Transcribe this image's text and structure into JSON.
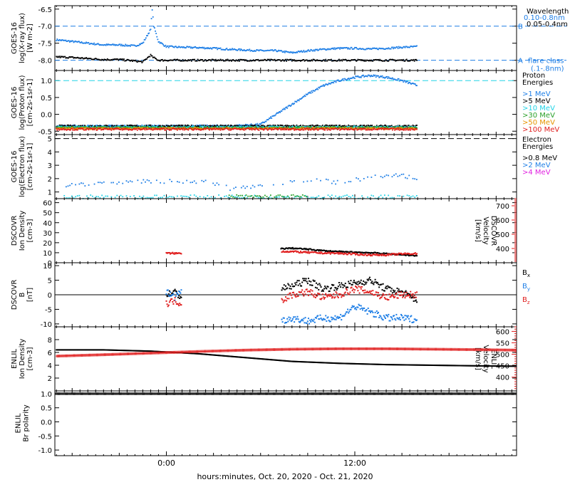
{
  "colors": {
    "black": "#000000",
    "blue": "#1f7fe6",
    "cyan": "#22d3e6",
    "green": "#2aa02a",
    "orange": "#e69500",
    "red": "#e01e1e",
    "magenta": "#e020e0"
  },
  "x_axis": {
    "title": "hours:minutes, Oct. 20, 2020 - Oct. 21, 2020",
    "tick_labels": [
      "0:00",
      "12:00"
    ],
    "range_hours": [
      -7.1,
      22.3
    ],
    "major_ticks_hours": [
      0,
      12
    ],
    "minor_tick_step_hours": 0.5
  },
  "chart_data": [
    {
      "id": "xray",
      "type": "scatter",
      "ylabel": [
        "GOES-16",
        "log(X-ray flux)",
        "[W m-2]"
      ],
      "ylim": [
        -8.3,
        -6.4
      ],
      "yticks": [
        -6.5,
        -7.0,
        -7.5,
        -8.0
      ],
      "ytick_labels": [
        "-6.5",
        "-7.0",
        "-7.5",
        "-8.0"
      ],
      "legend_title": "Wavelength",
      "series": [
        {
          "name": "0.10-0.8nm",
          "color": "blue",
          "x": [
            -7,
            -6,
            -5,
            -4,
            -3,
            -2,
            -1.5,
            -1,
            -0.9,
            -0.8,
            -0.5,
            0,
            1,
            2,
            3,
            4,
            5,
            6,
            7,
            8,
            9,
            10,
            11,
            12,
            13,
            14,
            15,
            16
          ],
          "y": [
            -7.4,
            -7.45,
            -7.5,
            -7.55,
            -7.55,
            -7.58,
            -7.5,
            -7.1,
            -6.5,
            -7.0,
            -7.45,
            -7.6,
            -7.62,
            -7.63,
            -7.65,
            -7.68,
            -7.7,
            -7.72,
            -7.72,
            -7.78,
            -7.72,
            -7.68,
            -7.65,
            -7.65,
            -7.67,
            -7.65,
            -7.62,
            -7.6
          ]
        },
        {
          "name": "0.05-0.4nm",
          "color": "black",
          "x": [
            -7,
            -6,
            -5,
            -4,
            -3,
            -2,
            -1.5,
            -1,
            -0.9,
            -0.5,
            0,
            2,
            4,
            6,
            8,
            10,
            12,
            14,
            16
          ],
          "y": [
            -7.9,
            -7.92,
            -7.95,
            -7.98,
            -7.98,
            -8.02,
            -8.05,
            -7.85,
            -7.9,
            -8.0,
            -8.0,
            -8.0,
            -8.0,
            -8.0,
            -8.0,
            -8.0,
            -8.0,
            -8.0,
            -8.0
          ]
        }
      ],
      "reference_lines": [
        {
          "label": "B",
          "y": -7.0,
          "color": "blue"
        },
        {
          "label": "A",
          "y": -8.0,
          "color": "blue"
        }
      ],
      "reference_note": "flare class",
      "reference_note_sub": "(.1-.8nm)"
    },
    {
      "id": "proton",
      "type": "scatter",
      "ylabel": [
        "GOES-16",
        "log(Proton flux)",
        "[cm-2s-1sr-1]"
      ],
      "ylim": [
        -0.6,
        1.3
      ],
      "yticks": [
        1.0,
        0.5,
        0.0,
        -0.5
      ],
      "ytick_labels": [
        "1.0",
        "0.5",
        "0.0",
        "-0.5"
      ],
      "legend_title": "Proton Energies",
      "reference_line": {
        "y": 1.0,
        "color": "cyan"
      },
      "series": [
        {
          "name": ">1 MeV",
          "color": "blue",
          "x": [
            -7,
            -4,
            0,
            4,
            6,
            7,
            8,
            9,
            10,
            11,
            12,
            13,
            14,
            15,
            16
          ],
          "y": [
            -0.35,
            -0.35,
            -0.35,
            -0.35,
            -0.3,
            0.0,
            0.3,
            0.6,
            0.85,
            1.0,
            1.1,
            1.15,
            1.1,
            1.0,
            0.85
          ]
        },
        {
          "name": ">5 MeV",
          "color": "black",
          "x": [
            -7,
            0,
            8,
            16
          ],
          "y": [
            -0.35,
            -0.35,
            -0.35,
            -0.35
          ]
        },
        {
          "name": ">10 MeV",
          "color": "cyan",
          "x": [
            -7,
            0,
            8,
            16
          ],
          "y": [
            -0.38,
            -0.38,
            -0.38,
            -0.38
          ]
        },
        {
          "name": ">30 MeV",
          "color": "green",
          "x": [
            -7,
            0,
            8,
            16
          ],
          "y": [
            -0.4,
            -0.4,
            -0.4,
            -0.4
          ]
        },
        {
          "name": ">50 MeV",
          "color": "orange",
          "x": [
            -7,
            0,
            8,
            16
          ],
          "y": [
            -0.42,
            -0.42,
            -0.42,
            -0.42
          ]
        },
        {
          "name": ">100 MeV",
          "color": "red",
          "x": [
            -7,
            0,
            8,
            16
          ],
          "y": [
            -0.44,
            -0.44,
            -0.44,
            -0.44
          ]
        }
      ]
    },
    {
      "id": "electron",
      "type": "scatter",
      "ylabel": [
        "GOES-16",
        "log(Electron flux)",
        "[cm-2s-1sr-1]"
      ],
      "ylim": [
        0.5,
        5.3
      ],
      "yticks": [
        5,
        4,
        3,
        2,
        1
      ],
      "ytick_labels": [
        "5",
        "4",
        "3",
        "2",
        "1"
      ],
      "legend_title": "Electron Energies",
      "reference_line": {
        "y": 5.0,
        "color": "black"
      },
      "series": [
        {
          "name": ">0.8 MeV",
          "color": "black",
          "x": [],
          "y": []
        },
        {
          "name": ">2 MeV",
          "color": "blue",
          "x": [
            -6.5,
            -4,
            -2,
            0,
            2,
            3.5,
            4,
            7,
            8,
            9,
            10,
            11,
            12,
            13,
            14,
            15,
            16
          ],
          "y": [
            1.5,
            1.7,
            1.8,
            1.8,
            1.8,
            1.6,
            1.2,
            1.6,
            1.8,
            1.9,
            1.9,
            1.7,
            1.9,
            2.1,
            2.2,
            2.2,
            2.0
          ]
        },
        {
          "name": ">4 MeV",
          "color": "magenta",
          "x": [],
          "y": []
        },
        {
          "name": "",
          "color": "cyan",
          "x": [
            -6.5,
            16
          ],
          "y": [
            0.62,
            0.62
          ]
        },
        {
          "name": "",
          "color": "green",
          "x": [
            4,
            9
          ],
          "y": [
            0.65,
            0.65
          ]
        }
      ]
    },
    {
      "id": "dscovr-density",
      "type": "line",
      "ylabel": [
        "DSCOVR",
        "Ion Density",
        "[cm-3]"
      ],
      "ylim": [
        0,
        64
      ],
      "yticks": [
        60,
        50,
        40,
        30,
        20,
        10,
        0
      ],
      "ytick_labels": [
        "60",
        "50",
        "40",
        "30",
        "20",
        "10",
        "0"
      ],
      "right_ylabel": [
        "DSCOVR",
        "Velocity",
        "[km/s]"
      ],
      "right_ylim": [
        300,
        750
      ],
      "right_yticks": [
        700,
        600,
        500,
        400
      ],
      "right_ytick_labels": [
        "700",
        "600",
        "500",
        "400"
      ],
      "series": [
        {
          "name": "density",
          "color": "black",
          "x": [
            7.3,
            8,
            9,
            10,
            11,
            12,
            13,
            14,
            15,
            16
          ],
          "y": [
            14,
            14.5,
            13.5,
            12,
            11,
            10.5,
            10,
            9,
            8,
            7
          ]
        },
        {
          "name": "velocity",
          "color": "red",
          "axis": "right",
          "x": [
            0,
            1,
            7.3,
            8,
            9,
            10,
            11,
            12,
            13,
            14,
            15,
            16
          ],
          "y": [
            366,
            366,
            380,
            378,
            372,
            368,
            366,
            360,
            355,
            355,
            362,
            364
          ]
        }
      ]
    },
    {
      "id": "dscovr-bfield",
      "type": "line",
      "ylabel": [
        "DSCOVR",
        "B",
        "[nT]"
      ],
      "ylim": [
        -11,
        11
      ],
      "yticks": [
        10,
        5,
        0,
        -5,
        -10
      ],
      "ytick_labels": [
        "10",
        "5",
        "0",
        "-5",
        "-10"
      ],
      "zero_line": true,
      "series": [
        {
          "name": "Bx",
          "color": "black",
          "x": [
            0,
            0.5,
            1,
            7.3,
            8,
            9,
            10,
            11,
            12,
            13,
            14,
            15,
            16
          ],
          "y": [
            0,
            1,
            -1,
            2,
            3,
            5,
            2,
            3,
            4,
            5,
            2,
            1,
            -2
          ]
        },
        {
          "name": "By",
          "color": "blue",
          "x": [
            0,
            0.5,
            1,
            7.3,
            8,
            9,
            10,
            11,
            12,
            13,
            14,
            15,
            16
          ],
          "y": [
            1,
            -1,
            2,
            -9,
            -8,
            -9,
            -8,
            -8,
            -4,
            -6,
            -8,
            -8,
            -8.5
          ]
        },
        {
          "name": "Bz",
          "color": "red",
          "x": [
            0,
            0.5,
            1,
            7.3,
            8,
            9,
            10,
            11,
            12,
            13,
            14,
            15,
            16
          ],
          "y": [
            -3,
            -2,
            -3,
            -2,
            0,
            1,
            -1,
            0,
            2,
            1,
            -1,
            0,
            0
          ]
        }
      ]
    },
    {
      "id": "enlil-density",
      "type": "line",
      "ylabel": [
        "ENLIL",
        "Ion Density",
        "[cm-3]"
      ],
      "ylim": [
        0,
        10
      ],
      "yticks": [
        8,
        6,
        4,
        2
      ],
      "ytick_labels": [
        "8",
        "6",
        "4",
        "2"
      ],
      "right_ylabel": [
        "ENLIL",
        "Velocity",
        "[km/s]"
      ],
      "right_ylim": [
        340,
        620
      ],
      "right_yticks": [
        600,
        550,
        500,
        450,
        400
      ],
      "right_ytick_labels": [
        "600",
        "550",
        "500",
        "450",
        "400"
      ],
      "series": [
        {
          "name": "density",
          "color": "black",
          "x": [
            -7,
            -4,
            -1,
            2,
            5,
            8,
            11,
            14,
            17,
            20,
            22.3
          ],
          "y": [
            6.4,
            6.4,
            6.2,
            5.8,
            5.2,
            4.6,
            4.3,
            4.1,
            4.0,
            3.9,
            3.85
          ]
        },
        {
          "name": "velocity",
          "color": "red",
          "axis": "right",
          "x": [
            -7,
            -4,
            -1,
            2,
            5,
            8,
            11,
            14,
            17,
            20,
            22.3
          ],
          "y": [
            492,
            498,
            505,
            512,
            518,
            522,
            524,
            524,
            522,
            520,
            518
          ]
        }
      ]
    },
    {
      "id": "enlil-polarity",
      "type": "line",
      "ylabel": [
        "ENLIL",
        "Br polarity"
      ],
      "ylim": [
        -1.2,
        1.1
      ],
      "yticks": [
        1.0,
        0.5,
        0.0,
        -0.5,
        -1.0
      ],
      "ytick_labels": [
        "1.0",
        "0.5",
        "0.0",
        "-0.5",
        "-1.0"
      ],
      "series": [
        {
          "name": "polarity",
          "color": "black",
          "x": [
            -7.1,
            22.3
          ],
          "y": [
            1.0,
            1.0
          ]
        }
      ]
    }
  ],
  "side_legend": {
    "bfield": [
      "Bx",
      "By",
      "Bz"
    ]
  }
}
